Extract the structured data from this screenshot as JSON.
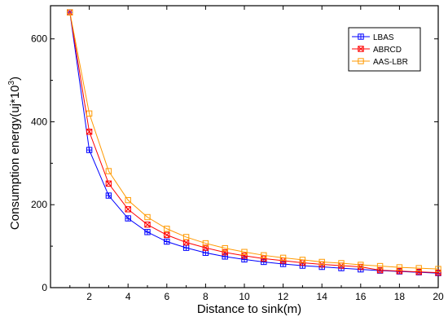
{
  "chart_data": {
    "type": "line",
    "title": "",
    "xlabel": "Distance to sink(m)",
    "ylabel": {
      "main": "Consumption energy(uj*10",
      "exponent": "3",
      "close": ")"
    },
    "xlim": [
      0,
      20
    ],
    "ylim": [
      0,
      680
    ],
    "x_ticks": [
      2,
      4,
      6,
      8,
      10,
      12,
      14,
      16,
      18,
      20
    ],
    "y_ticks": [
      0,
      200,
      400,
      600
    ],
    "grid": false,
    "legend_position": "top-right",
    "x": [
      1,
      2,
      3,
      4,
      5,
      6,
      7,
      8,
      9,
      10,
      11,
      12,
      13,
      14,
      15,
      16,
      17,
      18,
      19,
      20
    ],
    "series": [
      {
        "name": "LBAS",
        "color": "#0000ff",
        "marker": "square-cross",
        "values": [
          664,
          332,
          222,
          167,
          134,
          111,
          96,
          84,
          75,
          68,
          62,
          57,
          53,
          50,
          47,
          44,
          41,
          39,
          37,
          35
        ]
      },
      {
        "name": "ABRCD",
        "color": "#ff0000",
        "marker": "square-x",
        "values": [
          664,
          376,
          251,
          189,
          152,
          127,
          109,
          96,
          85,
          77,
          70,
          65,
          60,
          56,
          53,
          50,
          42,
          40,
          38,
          36
        ]
      },
      {
        "name": "AAS-LBR",
        "color": "#ff9900",
        "marker": "square",
        "values": [
          664,
          420,
          281,
          211,
          170,
          142,
          122,
          107,
          95,
          86,
          78,
          72,
          67,
          62,
          59,
          55,
          52,
          49,
          47,
          45
        ]
      }
    ]
  }
}
